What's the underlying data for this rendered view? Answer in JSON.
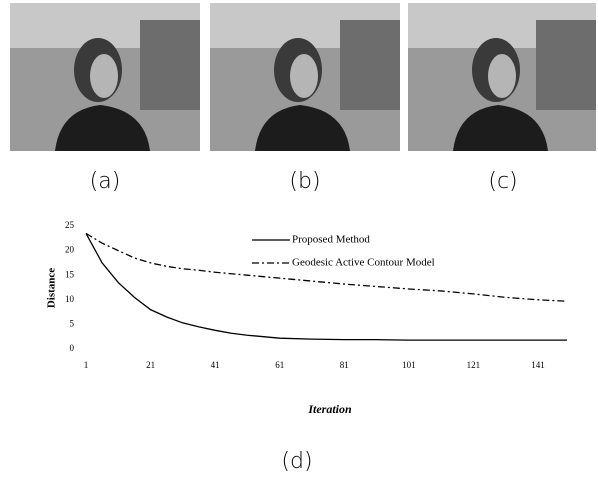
{
  "panels": [
    {
      "label": "(a)"
    },
    {
      "label": "(b)"
    },
    {
      "label": "(c)"
    }
  ],
  "chart_data": {
    "type": "line",
    "x_label": "Iteration",
    "y_label": "Distance",
    "x": [
      1,
      6,
      11,
      16,
      21,
      26,
      31,
      36,
      41,
      46,
      51,
      56,
      61,
      71,
      81,
      91,
      101,
      111,
      121,
      131,
      141,
      150
    ],
    "series": [
      {
        "name": "Proposed Method",
        "color": "#000000",
        "style": "solid",
        "values": [
          23.5,
          17.5,
          13.5,
          10.5,
          8.0,
          6.5,
          5.3,
          4.5,
          3.8,
          3.2,
          2.8,
          2.5,
          2.2,
          2.0,
          1.9,
          1.9,
          1.8,
          1.8,
          1.8,
          1.8,
          1.8,
          1.8
        ]
      },
      {
        "name": "Geodesic Active Contour Model",
        "color": "#000000",
        "style": "dashdot",
        "values": [
          23.5,
          21.5,
          20.0,
          18.5,
          17.5,
          16.8,
          16.3,
          16.0,
          15.6,
          15.3,
          15.0,
          14.7,
          14.4,
          13.8,
          13.2,
          12.7,
          12.2,
          11.8,
          11.2,
          10.5,
          10.0,
          9.7
        ]
      }
    ],
    "xlim": [
      1,
      150
    ],
    "xticks": [
      1,
      21,
      41,
      61,
      81,
      101,
      121,
      141
    ],
    "ylim": [
      0,
      25
    ],
    "yticks": [
      0,
      5,
      10,
      15,
      20,
      25
    ],
    "grid": false
  },
  "caption": "(d)"
}
